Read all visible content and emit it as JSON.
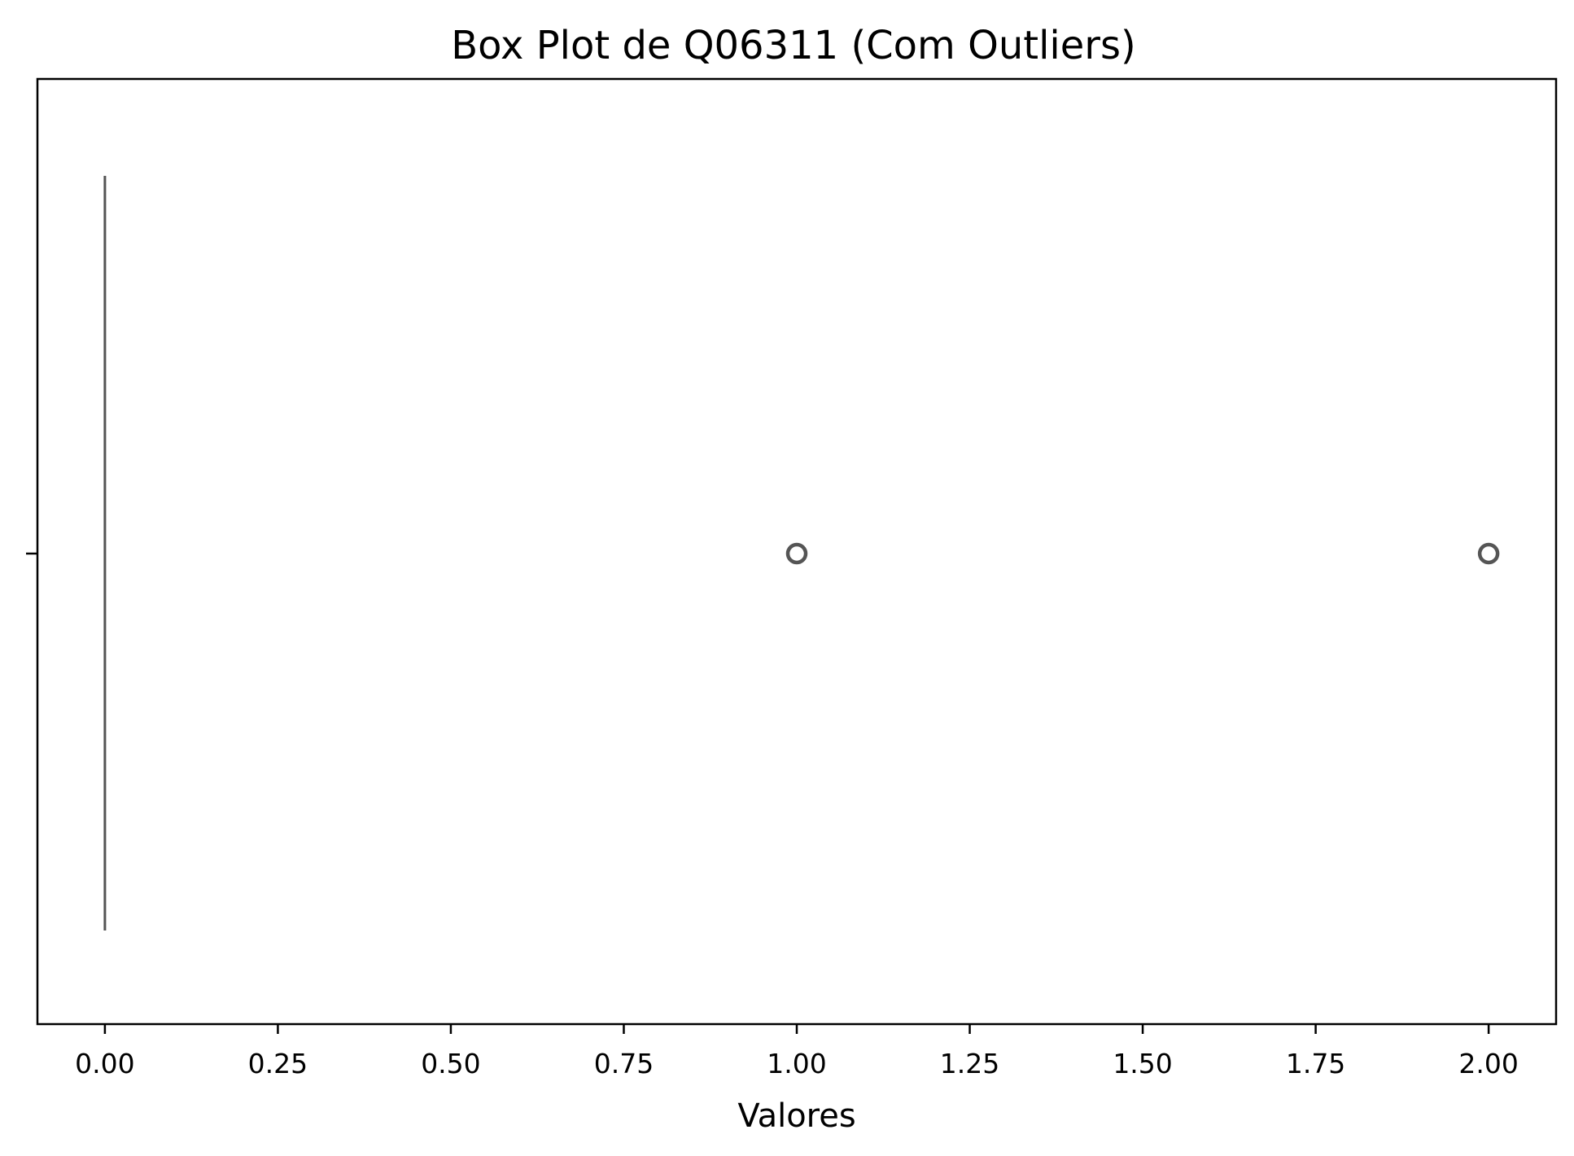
{
  "chart_data": {
    "type": "box",
    "orientation": "horizontal",
    "title": "Box Plot de Q06311 (Com Outliers)",
    "xlabel": "Valores",
    "ylabel": "",
    "xlim": [
      -0.0975,
      2.0975
    ],
    "xticks": [
      0.0,
      0.25,
      0.5,
      0.75,
      1.0,
      1.25,
      1.5,
      1.75,
      2.0
    ],
    "xtick_labels": [
      "0.00",
      "0.25",
      "0.50",
      "0.75",
      "1.00",
      "1.25",
      "1.50",
      "1.75",
      "2.00"
    ],
    "grid": false,
    "legend": "none",
    "box": {
      "min": 0,
      "q1": 0,
      "median": 0,
      "q3": 0,
      "max": 0,
      "outliers": [
        1,
        2
      ]
    },
    "colors": {
      "box_line": "#555555",
      "axes": "#000000",
      "background": "#ffffff"
    }
  }
}
